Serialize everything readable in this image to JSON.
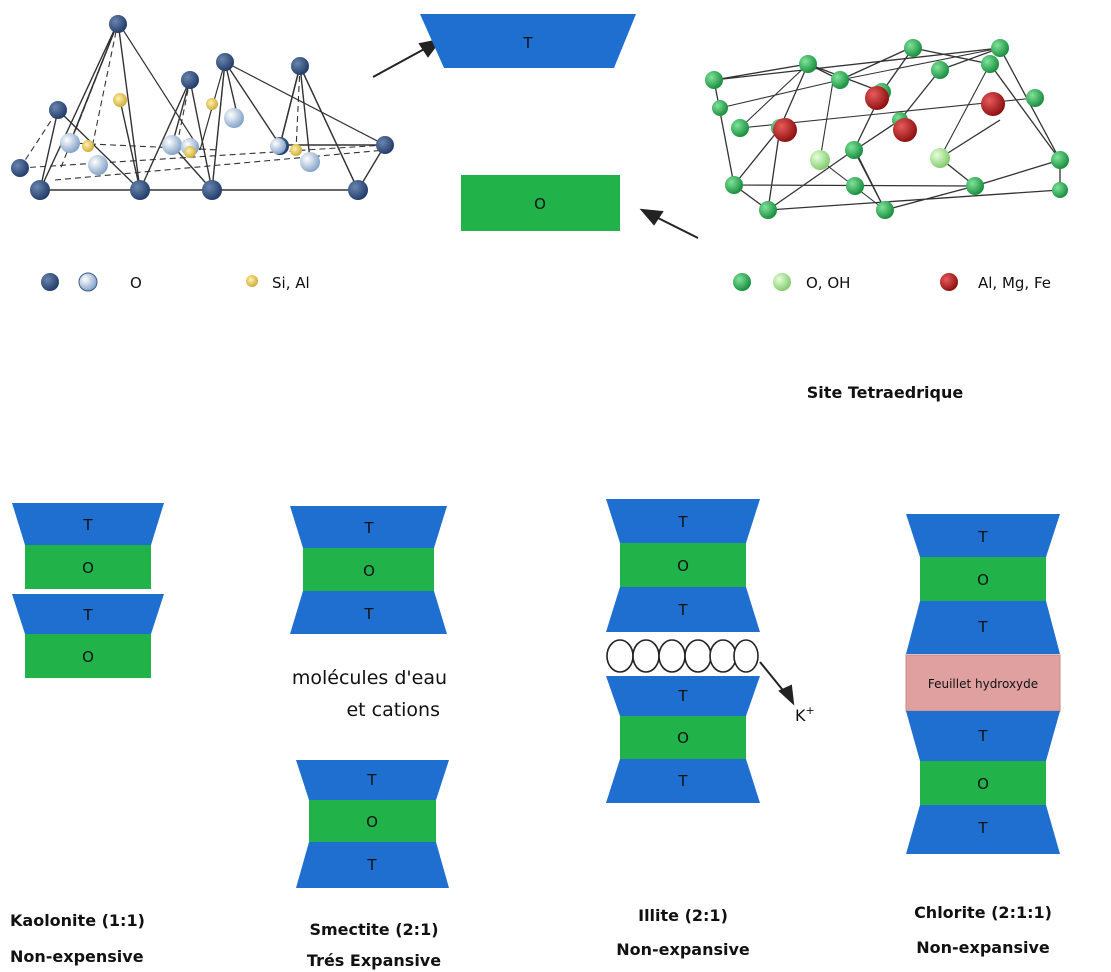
{
  "colors": {
    "tetra": "#1f6fd0",
    "octa": "#21b24a",
    "hydroxide": "#e0a0a0",
    "o_dark": "#1f3a66",
    "o_light": "#b9cfe8",
    "si_al": "#d4b23a",
    "oh_dark": "#1f9c45",
    "oh_light": "#8fd47e",
    "metal": "#b01a1a"
  },
  "top": {
    "tetra_label": "T",
    "octa_label": "O",
    "legend_o": "O",
    "legend_si": "Si, Al",
    "legend_oh": "O, OH",
    "legend_metal": "Al, Mg, Fe",
    "site_label": "Site Tetraedrique"
  },
  "stacks": {
    "t": "T",
    "o": "O",
    "water_line1": "molécules d'eau",
    "water_line2": "et cations",
    "k_label": "K",
    "k_sup": "+",
    "hydroxide_label": "Feuillet hydroxyde"
  },
  "captions": [
    {
      "name": "Kaolonite (1:1)",
      "type": "Non-expensive"
    },
    {
      "name": "Smectite (2:1)",
      "type": "Trés Expansive"
    },
    {
      "name": "Illite (2:1)",
      "type": "Non-expansive"
    },
    {
      "name": "Chlorite (2:1:1)",
      "type": "Non-expansive"
    }
  ]
}
